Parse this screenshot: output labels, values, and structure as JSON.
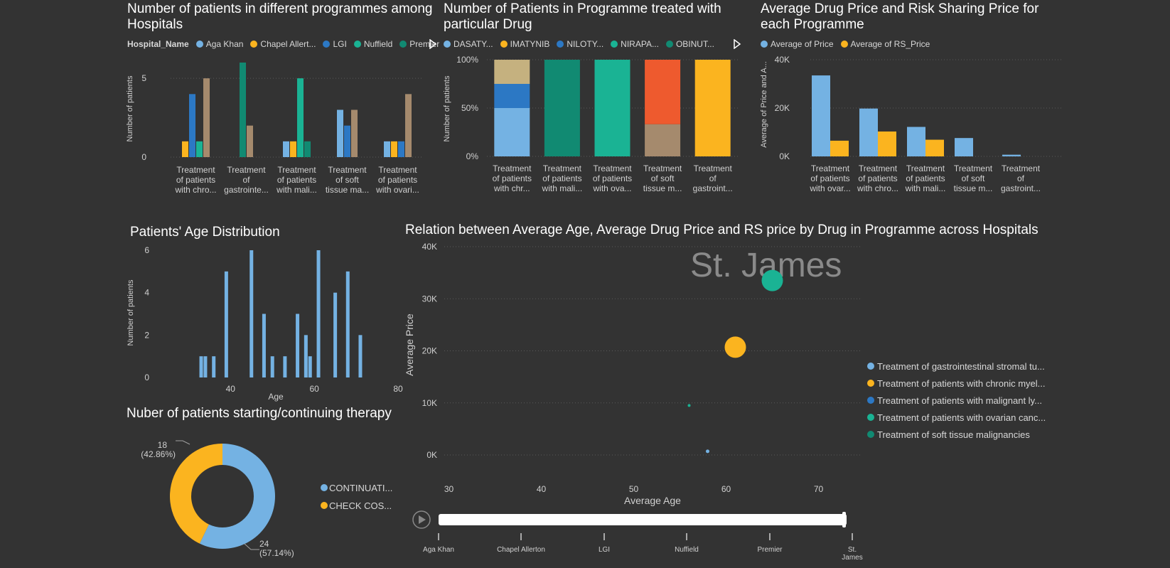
{
  "colors": {
    "aga_khan": "#74b2e3",
    "chapel_allerton": "#fbb41f",
    "lgi": "#2c78c4",
    "nuffield": "#1ab394",
    "premier": "#118a72",
    "tan": "#a58a6d",
    "khaki": "#c5b17f",
    "red": "#ee5a2e",
    "axis": "#bfbfbf",
    "grid": "#4a4a4a"
  },
  "chart_data": [
    {
      "id": "patients_by_hospital",
      "type": "bar",
      "title": "Number of patients in different programmes among Hospitals",
      "legend_title": "Hospital_Name",
      "legend": [
        "Aga Khan",
        "Chapel Allert...",
        "LGI",
        "Nuffield",
        "Premier"
      ],
      "ylabel": "Number of patients",
      "yticks": [
        "0",
        "5"
      ],
      "ylim": [
        0,
        6
      ],
      "categories": [
        "Treatment of patients with chro...",
        "Treatment of gastrointe...",
        "Treatment of patients with mali...",
        "Treatment of soft tissue ma...",
        "Treatment of patients with ovari..."
      ],
      "category_lines": [
        [
          "Treatment",
          "of patients",
          "with chro..."
        ],
        [
          "Treatment",
          "of",
          "gastrointe..."
        ],
        [
          "Treatment",
          "of patients",
          "with mali..."
        ],
        [
          "Treatment",
          "of soft",
          "tissue ma..."
        ],
        [
          "Treatment",
          "of patients",
          "with ovari..."
        ]
      ],
      "series": [
        {
          "name": "Aga Khan",
          "color": "#74b2e3",
          "values": [
            0,
            0,
            1,
            3,
            1
          ]
        },
        {
          "name": "Chapel Allerton",
          "color": "#fbb41f",
          "values": [
            1,
            0,
            1,
            0,
            1
          ]
        },
        {
          "name": "LGI",
          "color": "#2c78c4",
          "values": [
            4,
            0,
            0,
            2,
            1
          ]
        },
        {
          "name": "Nuffield",
          "color": "#1ab394",
          "values": [
            1,
            0,
            5,
            0,
            0
          ]
        },
        {
          "name": "Premier",
          "color": "#118a72",
          "values": [
            0,
            6,
            1,
            0,
            0
          ]
        },
        {
          "name": "St. James",
          "color": "#a58a6d",
          "values": [
            5,
            2,
            0,
            3,
            4
          ]
        }
      ]
    },
    {
      "id": "patients_by_drug",
      "type": "bar",
      "stacked": "100%",
      "title": "Number of Patients in Programme treated with particular Drug",
      "legend": [
        "DASATY...",
        "IMATYNIB",
        "NILOTY...",
        "NIRAPA...",
        "OBINUT..."
      ],
      "legend_colors": [
        "#74b2e3",
        "#fbb41f",
        "#2c78c4",
        "#1ab394",
        "#118a72"
      ],
      "ylabel": "Number of patients",
      "yticks": [
        "0%",
        "50%",
        "100%"
      ],
      "categories": [
        "Treatment of patients with chr...",
        "Treatment of patients with mali...",
        "Treatment of patients with ova...",
        "Treatment of soft tissue m...",
        "Treatment of gastroint..."
      ],
      "category_lines": [
        [
          "Treatment",
          "of patients",
          "with chr..."
        ],
        [
          "Treatment",
          "of patients",
          "with mali..."
        ],
        [
          "Treatment",
          "of patients",
          "with ova..."
        ],
        [
          "Treatment",
          "of soft",
          "tissue m..."
        ],
        [
          "Treatment",
          "of",
          "gastroint..."
        ]
      ],
      "stacks": [
        [
          {
            "color": "#74b2e3",
            "value": 50
          },
          {
            "color": "#2c78c4",
            "value": 25
          },
          {
            "color": "#c5b17f",
            "value": 25
          }
        ],
        [
          {
            "color": "#118a72",
            "value": 100
          }
        ],
        [
          {
            "color": "#1ab394",
            "value": 100
          }
        ],
        [
          {
            "color": "#a58a6d",
            "value": 33.3
          },
          {
            "color": "#ee5a2e",
            "value": 66.7
          }
        ],
        [
          {
            "color": "#fbb41f",
            "value": 100
          }
        ]
      ]
    },
    {
      "id": "avg_price",
      "type": "bar",
      "title": "Average Drug Price and Risk Sharing Price for each Programme",
      "legend": [
        "Average of Price",
        "Average of RS_Price"
      ],
      "ylabel": "Average of Price and A...",
      "yticks": [
        "0K",
        "20K",
        "40K"
      ],
      "ylim": [
        0,
        40000
      ],
      "categories": [
        "Treatment of patients with ovar...",
        "Treatment of patients with chro...",
        "Treatment of patients with mali...",
        "Treatment of soft tissue m...",
        "Treatment of gastroint..."
      ],
      "category_lines": [
        [
          "Treatment",
          "of patients",
          "with ovar..."
        ],
        [
          "Treatment",
          "of patients",
          "with chro..."
        ],
        [
          "Treatment",
          "of patients",
          "with mali..."
        ],
        [
          "Treatment",
          "of soft",
          "tissue m..."
        ],
        [
          "Treatment",
          "of",
          "gastroint..."
        ]
      ],
      "series": [
        {
          "name": "Average of Price",
          "color": "#74b2e3",
          "values": [
            33500,
            19800,
            12200,
            7600,
            700
          ]
        },
        {
          "name": "Average of RS_Price",
          "color": "#fbb41f",
          "values": [
            6500,
            10300,
            6900,
            0,
            0
          ]
        }
      ]
    },
    {
      "id": "age_distribution",
      "type": "bar",
      "title": "Patients' Age Distribution",
      "xlabel": "Age",
      "ylabel": "Number of patients",
      "yticks": [
        "0",
        "2",
        "4",
        "6"
      ],
      "xticks": [
        "40",
        "60",
        "80"
      ],
      "xlim": [
        30,
        80
      ],
      "ylim": [
        0,
        6
      ],
      "x": [
        33,
        34,
        36,
        39,
        45,
        48,
        50,
        53,
        56,
        58,
        59,
        61,
        65,
        68,
        71
      ],
      "values": [
        1,
        1,
        1,
        5,
        6,
        3,
        1,
        1,
        3,
        2,
        1,
        6,
        4,
        5,
        2
      ]
    },
    {
      "id": "therapy_donut",
      "type": "pie",
      "title": "Nuber of patients starting/continuing therapy",
      "legend": [
        "CONTINUATI...",
        "CHECK COS..."
      ],
      "slices": [
        {
          "label": "CONTINUATI...",
          "value": 24,
          "pct": "(57.14%)",
          "color": "#74b2e3"
        },
        {
          "label": "CHECK COS...",
          "value": 18,
          "pct": "(42.86%)",
          "color": "#fbb41f"
        }
      ]
    },
    {
      "id": "bubble",
      "type": "scatter",
      "title": "Relation between Average Age, Average Drug Price and RS price by Drug in Programme across Hospitals",
      "xlabel": "Average Age",
      "ylabel": "Average Price",
      "xticks": [
        "30",
        "40",
        "50",
        "60",
        "70"
      ],
      "yticks": [
        "0K",
        "10K",
        "20K",
        "30K",
        "40K"
      ],
      "xlim": [
        29.5,
        74.5
      ],
      "ylim": [
        0,
        40000
      ],
      "watermark": "St. James",
      "legend": [
        {
          "label": "Treatment of gastrointestinal stromal tu...",
          "color": "#74b2e3"
        },
        {
          "label": "Treatment of patients with chronic myel...",
          "color": "#fbb41f"
        },
        {
          "label": "Treatment of patients with malignant ly...",
          "color": "#2c78c4"
        },
        {
          "label": "Treatment of patients with ovarian canc...",
          "color": "#1ab394"
        },
        {
          "label": "Treatment of soft tissue malignancies",
          "color": "#118a72"
        }
      ],
      "points": [
        {
          "x": 65,
          "y": 33500,
          "r": 15,
          "color": "#1ab394"
        },
        {
          "x": 61,
          "y": 20700,
          "r": 15,
          "color": "#fbb41f"
        },
        {
          "x": 56,
          "y": 9500,
          "r": 2,
          "color": "#1ab394"
        },
        {
          "x": 58,
          "y": 700,
          "r": 2.5,
          "color": "#74b2e3"
        }
      ],
      "play_axis": [
        "Aga Khan",
        "Chapel Allerton",
        "LGI",
        "Nuffield",
        "Premier",
        "St. James"
      ]
    }
  ]
}
